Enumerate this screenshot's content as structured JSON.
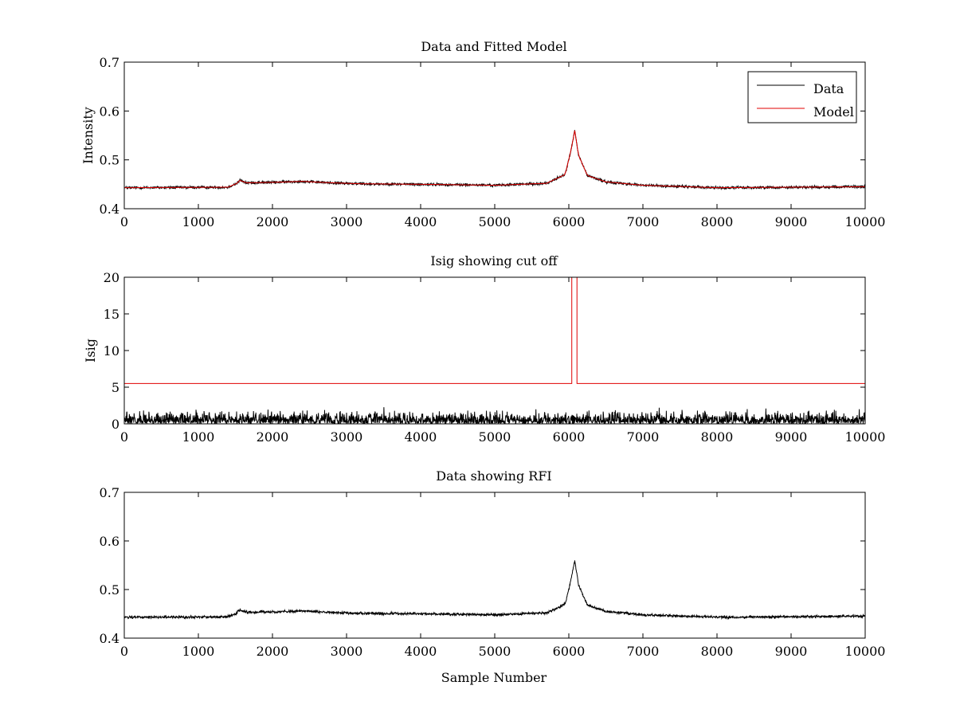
{
  "page": {
    "background": "#ffffff"
  },
  "chart_data": [
    {
      "type": "line",
      "title": "Data and Fitted Model",
      "xlabel": "",
      "ylabel": "Intensity",
      "xlim": [
        0,
        10000
      ],
      "ylim": [
        0.4,
        0.7
      ],
      "xticks": [
        0,
        1000,
        2000,
        3000,
        4000,
        5000,
        6000,
        7000,
        8000,
        9000,
        10000
      ],
      "yticks": [
        0.4,
        0.5,
        0.6,
        0.7
      ],
      "grid": false,
      "legend": {
        "placement": "top-right",
        "entries": [
          "Data",
          "Model"
        ]
      },
      "series": [
        {
          "name": "Data",
          "color": "#000000",
          "kind": "noisy",
          "base_x": [
            0,
            1400,
            1520,
            1560,
            1650,
            2000,
            2400,
            2800,
            3200,
            4000,
            5000,
            5700,
            5950,
            6030,
            6080,
            6130,
            6250,
            6500,
            7000,
            8000,
            9000,
            10000
          ],
          "base_y": [
            0.443,
            0.444,
            0.452,
            0.458,
            0.453,
            0.454,
            0.456,
            0.453,
            0.451,
            0.45,
            0.448,
            0.452,
            0.47,
            0.52,
            0.56,
            0.51,
            0.468,
            0.455,
            0.448,
            0.443,
            0.444,
            0.445
          ],
          "noise_amplitude": 0.004
        },
        {
          "name": "Model",
          "color": "#e00000",
          "kind": "smooth",
          "base_x": [
            0,
            1400,
            1520,
            1560,
            1650,
            2000,
            2400,
            2800,
            3200,
            4000,
            5000,
            5700,
            5950,
            6030,
            6080,
            6130,
            6250,
            6500,
            7000,
            8000,
            9000,
            10000
          ],
          "base_y": [
            0.443,
            0.444,
            0.452,
            0.458,
            0.453,
            0.454,
            0.456,
            0.453,
            0.451,
            0.45,
            0.448,
            0.452,
            0.47,
            0.52,
            0.56,
            0.51,
            0.468,
            0.455,
            0.448,
            0.443,
            0.444,
            0.445
          ]
        }
      ]
    },
    {
      "type": "line",
      "title": "Isig showing cut off",
      "xlabel": "",
      "ylabel": "Isig",
      "xlim": [
        0,
        10000
      ],
      "ylim": [
        0,
        20
      ],
      "xticks": [
        0,
        1000,
        2000,
        3000,
        4000,
        5000,
        6000,
        7000,
        8000,
        9000,
        10000
      ],
      "yticks": [
        0,
        5,
        10,
        15,
        20
      ],
      "grid": false,
      "series": [
        {
          "name": "Isig",
          "color": "#000000",
          "kind": "abs-noise",
          "noise_amplitude": 1.6,
          "max_value": 4
        },
        {
          "name": "Cut off",
          "color": "#e00000",
          "kind": "step",
          "x": [
            0,
            6040,
            6040,
            6110,
            6110,
            10000
          ],
          "y": [
            5.5,
            5.5,
            20,
            20,
            5.5,
            5.5
          ]
        }
      ]
    },
    {
      "type": "line",
      "title": "Data showing RFI",
      "xlabel": "Sample Number",
      "ylabel": "",
      "xlim": [
        0,
        10000
      ],
      "ylim": [
        0.4,
        0.7
      ],
      "xticks": [
        0,
        1000,
        2000,
        3000,
        4000,
        5000,
        6000,
        7000,
        8000,
        9000,
        10000
      ],
      "yticks": [
        0.4,
        0.5,
        0.6,
        0.7
      ],
      "grid": false,
      "series": [
        {
          "name": "Data",
          "color": "#000000",
          "kind": "noisy",
          "base_x": [
            0,
            1400,
            1520,
            1560,
            1650,
            2000,
            2400,
            2800,
            3200,
            4000,
            5000,
            5700,
            5950,
            6030,
            6080,
            6130,
            6250,
            6500,
            7000,
            8000,
            9000,
            10000
          ],
          "base_y": [
            0.443,
            0.444,
            0.452,
            0.458,
            0.453,
            0.454,
            0.456,
            0.453,
            0.451,
            0.45,
            0.448,
            0.452,
            0.47,
            0.52,
            0.56,
            0.51,
            0.468,
            0.455,
            0.448,
            0.443,
            0.444,
            0.445
          ],
          "noise_amplitude": 0.004
        }
      ]
    }
  ]
}
